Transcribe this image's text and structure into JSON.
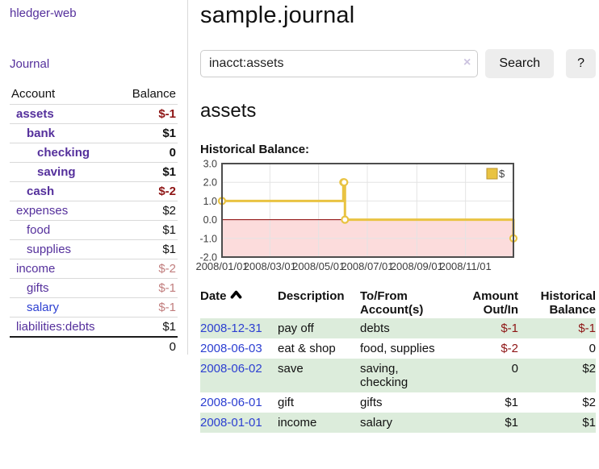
{
  "colors": {
    "link_purple": "#55309c",
    "link_blue": "#2c3fd1",
    "negative_strong": "#8e1515",
    "negative_muted": "#c17d7d",
    "row_green": "#dcecdb",
    "series_gold": "#e9c342",
    "legend_border": "#bb9630",
    "negative_region": "#fcdcdc",
    "zero_line": "#8b0000",
    "grid_line": "#e4e4e4",
    "chart_border": "#4d4d4d"
  },
  "sidebar": {
    "app_title": "hledger-web",
    "nav_journal": "Journal",
    "accounts": {
      "headers": [
        "Account",
        "Balance"
      ],
      "rows": [
        {
          "account": "assets",
          "balance": "$-1",
          "indent": 0,
          "bold": true,
          "link": "purple",
          "balance_tone": "neg-strong"
        },
        {
          "account": "bank",
          "balance": "$1",
          "indent": 1,
          "bold": true,
          "link": "purple",
          "balance_tone": "normal"
        },
        {
          "account": "checking",
          "balance": "0",
          "indent": 2,
          "bold": true,
          "link": "purple",
          "balance_tone": "normal"
        },
        {
          "account": "saving",
          "balance": "$1",
          "indent": 2,
          "bold": true,
          "link": "purple",
          "balance_tone": "normal"
        },
        {
          "account": "cash",
          "balance": "$-2",
          "indent": 1,
          "bold": true,
          "link": "purple",
          "balance_tone": "neg-strong"
        },
        {
          "account": "expenses",
          "balance": "$2",
          "indent": 0,
          "bold": false,
          "link": "purple",
          "balance_tone": "normal"
        },
        {
          "account": "food",
          "balance": "$1",
          "indent": 1,
          "bold": false,
          "link": "purple",
          "balance_tone": "normal"
        },
        {
          "account": "supplies",
          "balance": "$1",
          "indent": 1,
          "bold": false,
          "link": "purple",
          "balance_tone": "normal"
        },
        {
          "account": "income",
          "balance": "$-2",
          "indent": 0,
          "bold": false,
          "link": "purple",
          "balance_tone": "neg-muted"
        },
        {
          "account": "gifts",
          "balance": "$-1",
          "indent": 1,
          "bold": false,
          "link": "purple",
          "balance_tone": "neg-muted"
        },
        {
          "account": "salary",
          "balance": "$-1",
          "indent": 1,
          "bold": false,
          "link": "blue",
          "balance_tone": "neg-muted"
        },
        {
          "account": "liabilities:debts",
          "balance": "$1",
          "indent": 0,
          "bold": false,
          "link": "purple",
          "balance_tone": "normal"
        }
      ],
      "total": "0"
    }
  },
  "main": {
    "title": "sample.journal",
    "search": {
      "value": "inacct:assets",
      "clear_icon": "×",
      "search_button": "Search",
      "help_button": "?"
    },
    "account_heading": "assets",
    "chart_label": "Historical Balance:"
  },
  "chart_data": {
    "type": "line",
    "title": "Historical Balance:",
    "step": true,
    "series": [
      {
        "name": "$",
        "points": [
          [
            "2008-01-01",
            1
          ],
          [
            "2008-06-01",
            2
          ],
          [
            "2008-06-02",
            2
          ],
          [
            "2008-06-03",
            0
          ],
          [
            "2008-12-31",
            -1
          ]
        ]
      }
    ],
    "xlim": [
      "2008-01-01",
      "2008-12-31"
    ],
    "ylim": [
      -2,
      3
    ],
    "y_ticks": [
      3.0,
      2.0,
      1.0,
      0.0,
      -1.0,
      -2.0
    ],
    "x_ticks": [
      "2008/01/01",
      "2008/03/01",
      "2008/05/01",
      "2008/07/01",
      "2008/09/01",
      "2008/11/01"
    ],
    "grid": true,
    "legend_position": "top-right",
    "legend_label": "$",
    "negative_region_shaded": true
  },
  "register": {
    "headers": [
      "Date",
      "Description",
      "To/From Account(s)",
      "Amount Out/In",
      "Historical Balance"
    ],
    "sort_icon": "chevron-up",
    "rows": [
      {
        "date": "2008-12-31",
        "description": "pay off",
        "accounts": "debts",
        "amount": "$-1",
        "amount_tone": "neg",
        "balance": "$-1",
        "balance_tone": "neg",
        "shaded": true
      },
      {
        "date": "2008-06-03",
        "description": "eat & shop",
        "accounts": "food, supplies",
        "amount": "$-2",
        "amount_tone": "neg",
        "balance": "0",
        "balance_tone": "normal",
        "shaded": false
      },
      {
        "date": "2008-06-02",
        "description": "save",
        "accounts": "saving, checking",
        "amount": "0",
        "amount_tone": "normal",
        "balance": "$2",
        "balance_tone": "normal",
        "shaded": true
      },
      {
        "date": "2008-06-01",
        "description": "gift",
        "accounts": "gifts",
        "amount": "$1",
        "amount_tone": "normal",
        "balance": "$2",
        "balance_tone": "normal",
        "shaded": false
      },
      {
        "date": "2008-01-01",
        "description": "income",
        "accounts": "salary",
        "amount": "$1",
        "amount_tone": "normal",
        "balance": "$1",
        "balance_tone": "normal",
        "shaded": true
      }
    ]
  }
}
